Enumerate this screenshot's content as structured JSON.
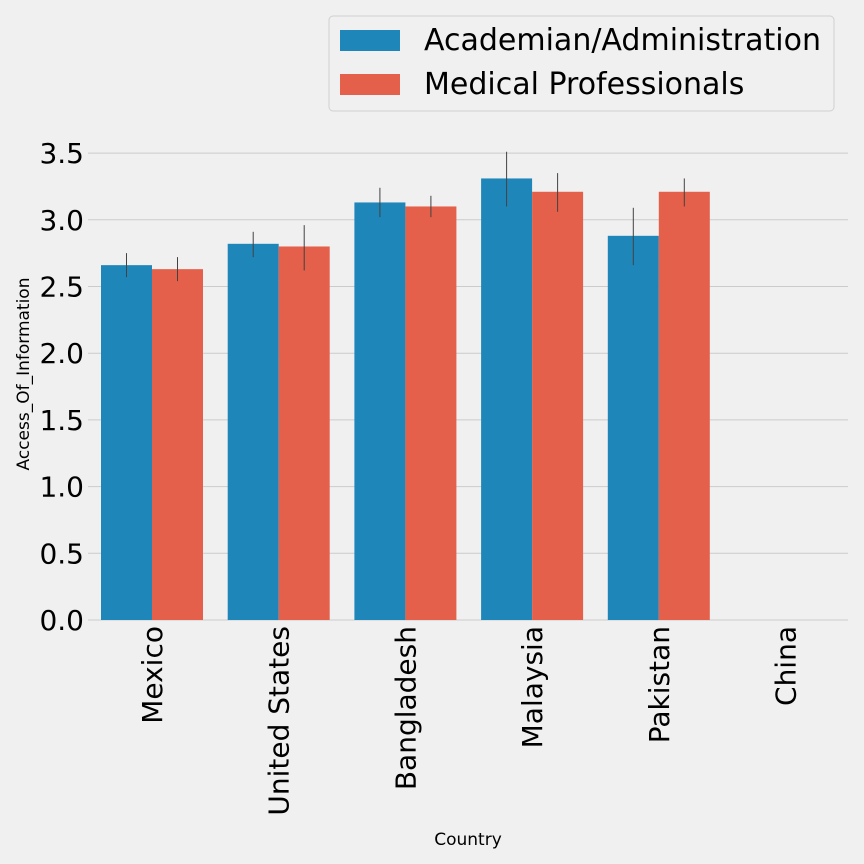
{
  "chart_data": {
    "type": "bar",
    "xlabel": "Country",
    "ylabel": "Access_Of_Information",
    "categories": [
      "Mexico",
      "United States",
      "Bangladesh",
      "Malaysia",
      "Pakistan",
      "China"
    ],
    "ylim": [
      0,
      3.6
    ],
    "yticks": [
      "0.0",
      "0.5",
      "1.0",
      "1.5",
      "2.0",
      "2.5",
      "3.0",
      "3.5"
    ],
    "grid": true,
    "legend_position": "top-right",
    "series": [
      {
        "name": "Academian/Administration",
        "color": "#1f86ba",
        "values": [
          2.66,
          2.82,
          3.13,
          3.31,
          2.88,
          null
        ],
        "err_low": [
          2.57,
          2.72,
          3.02,
          3.1,
          2.66,
          null
        ],
        "err_high": [
          2.75,
          2.91,
          3.24,
          3.51,
          3.09,
          null
        ]
      },
      {
        "name": "Medical Professionals",
        "color": "#e4604a",
        "values": [
          2.63,
          2.8,
          3.1,
          3.21,
          3.21,
          null
        ],
        "err_low": [
          2.54,
          2.62,
          3.02,
          3.06,
          3.1,
          null
        ],
        "err_high": [
          2.72,
          2.96,
          3.18,
          3.35,
          3.31,
          null
        ]
      }
    ]
  }
}
